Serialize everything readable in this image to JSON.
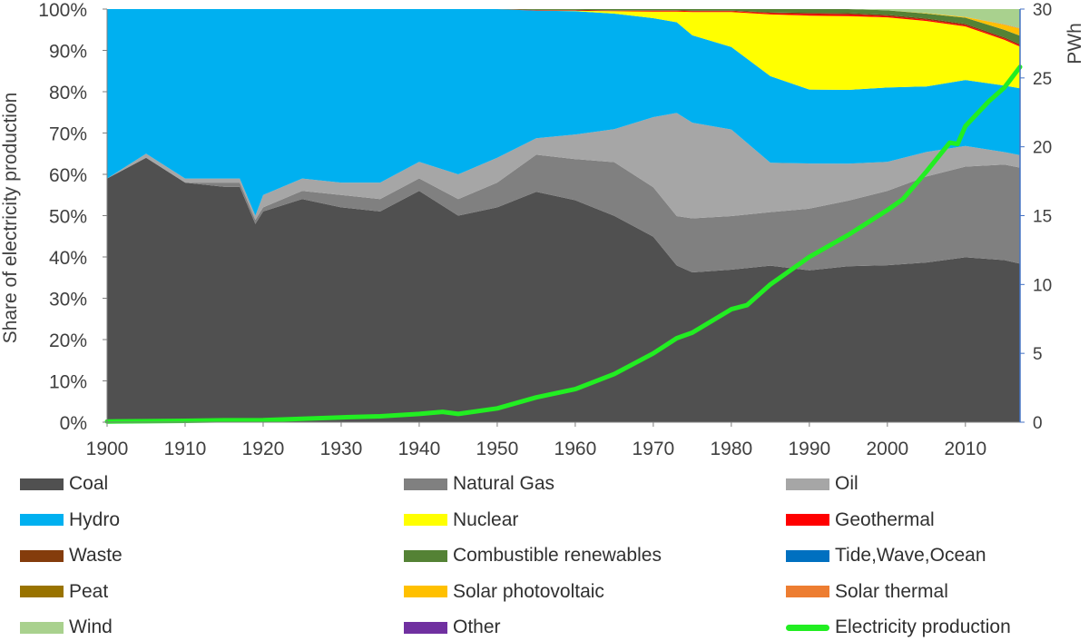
{
  "chart_data": {
    "type": "area",
    "title": "",
    "ylabel": "Share of electricity production",
    "y2label": "PWh",
    "ylim": [
      0,
      100
    ],
    "y2lim": [
      0,
      30
    ],
    "xlim": [
      1900,
      2017
    ],
    "x_ticks": [
      "1900",
      "1910",
      "1920",
      "1930",
      "1940",
      "1950",
      "1960",
      "1970",
      "1980",
      "1990",
      "2000",
      "2010"
    ],
    "y_ticks": [
      "0%",
      "10%",
      "20%",
      "30%",
      "40%",
      "50%",
      "60%",
      "70%",
      "80%",
      "90%",
      "100%"
    ],
    "y2_ticks": [
      "0",
      "5",
      "10",
      "15",
      "20",
      "25",
      "30"
    ],
    "x": [
      1900,
      1905,
      1910,
      1915,
      1917,
      1919,
      1920,
      1925,
      1930,
      1935,
      1940,
      1945,
      1950,
      1955,
      1960,
      1965,
      1970,
      1973,
      1975,
      1980,
      1985,
      1990,
      1995,
      2000,
      2005,
      2010,
      2015,
      2017
    ],
    "series": [
      {
        "name": "Coal",
        "color": "#505050",
        "values": [
          59,
          64,
          58,
          57,
          57,
          48,
          51,
          54,
          52,
          51,
          56,
          50,
          52,
          56,
          54,
          50,
          45,
          38,
          36,
          37,
          38,
          37,
          38,
          38,
          39,
          40,
          39,
          38
        ]
      },
      {
        "name": "Natural Gas",
        "color": "#808080",
        "values": [
          0,
          0,
          0,
          1,
          1,
          1,
          1,
          2,
          3,
          3,
          3,
          4,
          6,
          9,
          10,
          13,
          12,
          12,
          13,
          13,
          13,
          15,
          16,
          18,
          21,
          22,
          23,
          23
        ]
      },
      {
        "name": "Oil",
        "color": "#a6a6a6",
        "values": [
          0,
          1,
          1,
          1,
          1,
          1,
          3,
          3,
          3,
          4,
          4,
          6,
          6,
          4,
          6,
          8,
          17,
          25,
          23,
          21,
          12,
          11,
          9,
          7,
          6,
          5,
          3,
          3
        ]
      },
      {
        "name": "Hydro",
        "color": "#00b0f0",
        "values": [
          41,
          35,
          41,
          41,
          41,
          50,
          45,
          41,
          42,
          42,
          37,
          40,
          36,
          31,
          30,
          28,
          24,
          22,
          21,
          20,
          21,
          18,
          18,
          18,
          16,
          16,
          16,
          16
        ]
      },
      {
        "name": "Nuclear",
        "color": "#ffff00",
        "values": [
          0,
          0,
          0,
          0,
          0,
          0,
          0,
          0,
          0,
          0,
          0,
          0,
          0,
          0,
          0.1,
          0.6,
          1.6,
          2.6,
          5.6,
          8.5,
          15,
          18,
          18,
          17,
          16,
          13,
          11,
          10
        ]
      },
      {
        "name": "Geothermal",
        "color": "#ff0000",
        "values": [
          0,
          0,
          0,
          0,
          0,
          0,
          0,
          0,
          0,
          0,
          0,
          0,
          0,
          0.1,
          0.1,
          0.1,
          0.2,
          0.2,
          0.2,
          0.2,
          0.3,
          0.4,
          0.4,
          0.3,
          0.3,
          0.3,
          0.3,
          0.3
        ]
      },
      {
        "name": "Waste",
        "color": "#843c0c",
        "values": [
          0,
          0,
          0,
          0,
          0,
          0,
          0,
          0,
          0,
          0,
          0,
          0,
          0,
          0.1,
          0.1,
          0.1,
          0.1,
          0.1,
          0.1,
          0.1,
          0.2,
          0.3,
          0.3,
          0.3,
          0.3,
          0.3,
          0.3,
          0.3
        ]
      },
      {
        "name": "Combustible renewables",
        "color": "#548235",
        "values": [
          0,
          0,
          0,
          0,
          0,
          0,
          0,
          0,
          0,
          0,
          0,
          0,
          0,
          0.2,
          0.2,
          0.3,
          0.3,
          0.3,
          0.4,
          0.4,
          0.8,
          0.9,
          1,
          1.1,
          1.2,
          1.5,
          1.8,
          2
        ]
      },
      {
        "name": "Tide,Wave,Ocean",
        "color": "#0070c0",
        "values": [
          0,
          0,
          0,
          0,
          0,
          0,
          0,
          0,
          0,
          0,
          0,
          0,
          0,
          0,
          0,
          0,
          0,
          0,
          0,
          0,
          0,
          0,
          0,
          0,
          0,
          0,
          0,
          0
        ]
      },
      {
        "name": "Peat",
        "color": "#997300",
        "values": [
          0,
          0,
          0,
          0,
          0,
          0,
          0,
          0,
          0,
          0,
          0,
          0,
          0,
          0,
          0,
          0,
          0,
          0,
          0,
          0,
          0,
          0,
          0,
          0,
          0,
          0,
          0,
          0
        ]
      },
      {
        "name": "Solar photovoltaic",
        "color": "#ffc000",
        "values": [
          0,
          0,
          0,
          0,
          0,
          0,
          0,
          0,
          0,
          0,
          0,
          0,
          0,
          0,
          0,
          0,
          0,
          0,
          0,
          0,
          0,
          0,
          0,
          0,
          0.1,
          0.2,
          1.2,
          1.7
        ]
      },
      {
        "name": "Solar thermal",
        "color": "#ed7d31",
        "values": [
          0,
          0,
          0,
          0,
          0,
          0,
          0,
          0,
          0,
          0,
          0,
          0,
          0,
          0,
          0,
          0,
          0,
          0,
          0,
          0,
          0,
          0,
          0,
          0,
          0,
          0,
          0.1,
          0.1
        ]
      },
      {
        "name": "Wind",
        "color": "#a9d18e",
        "values": [
          0,
          0,
          0,
          0,
          0,
          0,
          0,
          0,
          0,
          0,
          0,
          0,
          0,
          0,
          0,
          0,
          0,
          0,
          0,
          0,
          0,
          0,
          0,
          0.3,
          1,
          1.9,
          3.7,
          4.6
        ]
      },
      {
        "name": "Other",
        "color": "#7030a0",
        "values": [
          0,
          0,
          0,
          0,
          0,
          0,
          0,
          0,
          0,
          0,
          0,
          0,
          0,
          0,
          0,
          0,
          0,
          0,
          0,
          0,
          0,
          0,
          0,
          0,
          0,
          0,
          0,
          0
        ]
      }
    ],
    "line_series": {
      "name": "Electricity production",
      "color": "#22ee22",
      "axis": "right",
      "x": [
        1900,
        1905,
        1910,
        1915,
        1920,
        1925,
        1930,
        1935,
        1940,
        1943,
        1945,
        1950,
        1955,
        1960,
        1965,
        1970,
        1973,
        1975,
        1980,
        1982,
        1985,
        1990,
        1995,
        2000,
        2002,
        2005,
        2008,
        2009,
        2010,
        2013,
        2015,
        2017
      ],
      "values": [
        0.05,
        0.07,
        0.1,
        0.14,
        0.15,
        0.25,
        0.35,
        0.43,
        0.6,
        0.75,
        0.6,
        1.0,
        1.8,
        2.4,
        3.5,
        5.0,
        6.1,
        6.5,
        8.2,
        8.5,
        10,
        12,
        13.6,
        15.4,
        16.2,
        18.2,
        20.3,
        20.2,
        21.5,
        23.3,
        24.3,
        25.8
      ]
    },
    "legend_position": "bottom",
    "grid": false
  }
}
